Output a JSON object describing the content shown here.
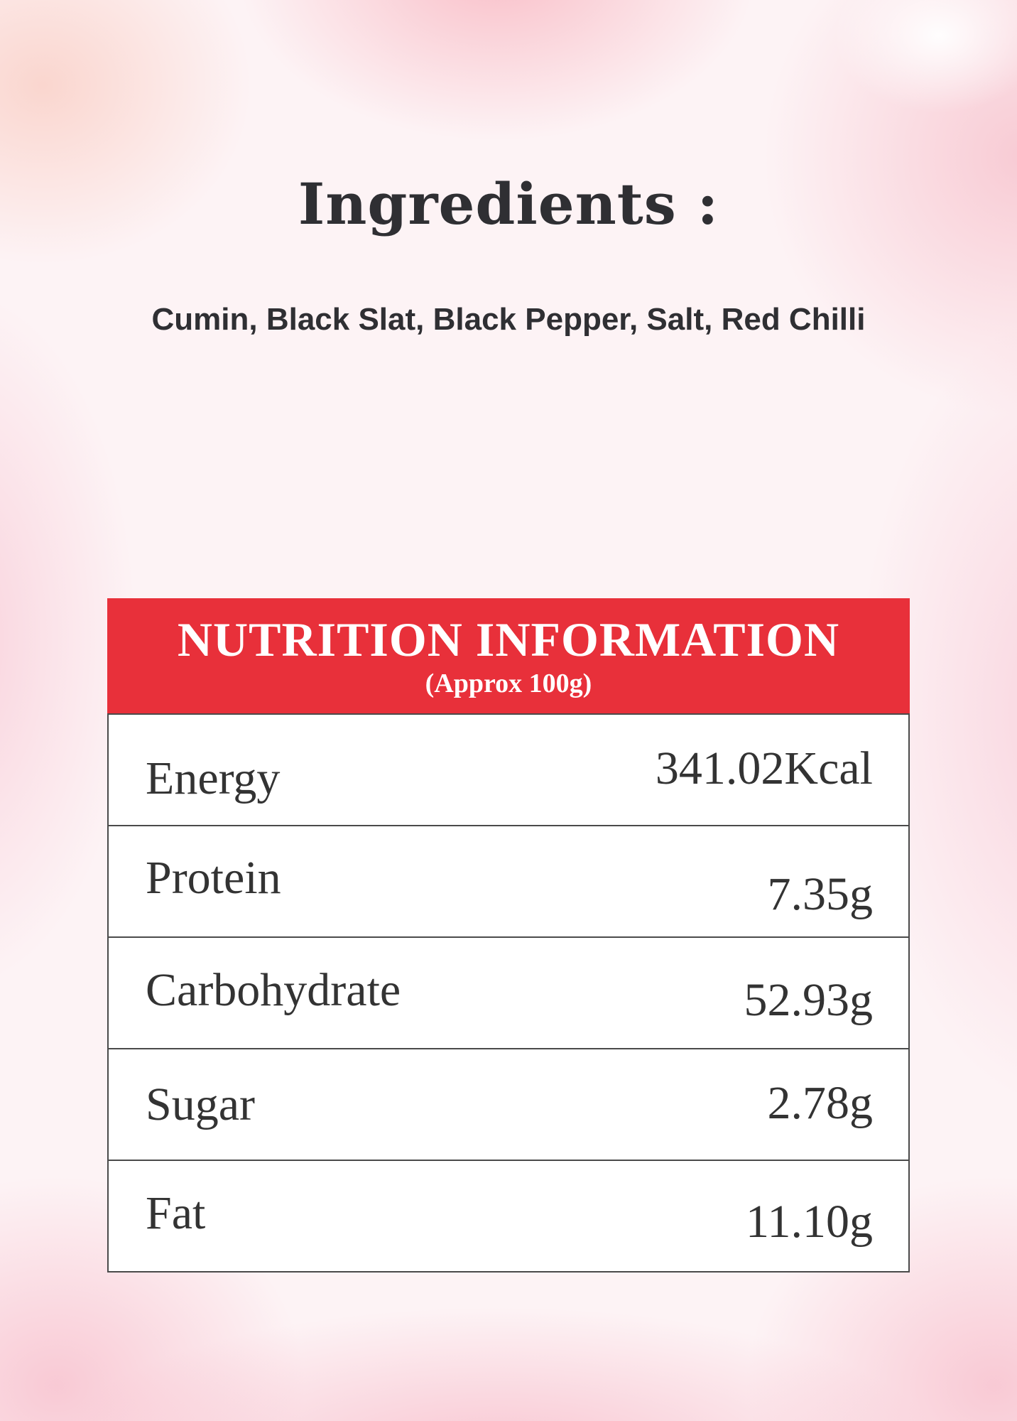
{
  "ingredients": {
    "title": "Ingredients :",
    "list": "Cumin, Black Slat, Black Pepper, Salt, Red Chilli"
  },
  "nutrition": {
    "title": "NUTRITION INFORMATION",
    "subtitle": "(Approx 100g)",
    "header_color": "#e8303a",
    "rows": [
      {
        "label": "Energy",
        "value": "341.02Kcal"
      },
      {
        "label": "Protein",
        "value": "7.35g"
      },
      {
        "label": "Carbohydrate",
        "value": "52.93g"
      },
      {
        "label": "Sugar",
        "value": "2.78g"
      },
      {
        "label": "Fat",
        "value": "11.10g"
      }
    ]
  }
}
